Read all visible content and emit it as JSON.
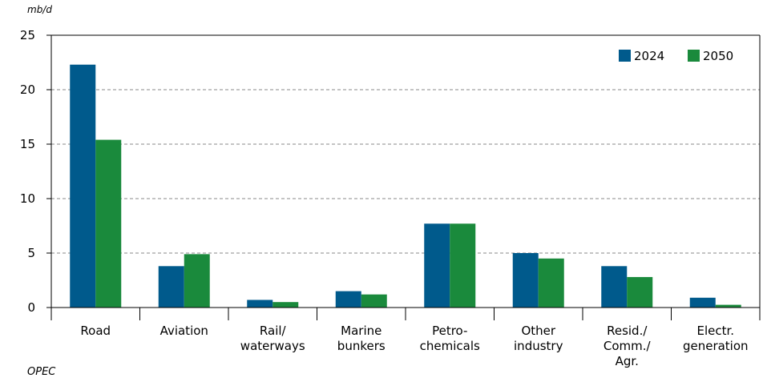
{
  "chart_data": {
    "type": "bar",
    "unit_label": "mb/d",
    "categories": [
      [
        "Road"
      ],
      [
        "Aviation"
      ],
      [
        "Rail/",
        "waterways"
      ],
      [
        "Marine",
        "bunkers"
      ],
      [
        "Petro-",
        "chemicals"
      ],
      [
        "Other",
        "industry"
      ],
      [
        "Resid./",
        "Comm./",
        "Agr."
      ],
      [
        "Electr.",
        "generation"
      ]
    ],
    "series": [
      {
        "name": "2024",
        "color": "#005a8c",
        "values": [
          22.3,
          3.8,
          0.7,
          1.5,
          7.7,
          5.0,
          3.8,
          0.9
        ]
      },
      {
        "name": "2050",
        "color": "#1a8a3c",
        "values": [
          15.4,
          4.9,
          0.5,
          1.2,
          7.7,
          4.5,
          2.8,
          0.25
        ]
      }
    ],
    "ylim": [
      0,
      25
    ],
    "yticks": [
      0,
      5,
      10,
      15,
      20,
      25
    ],
    "grid": "horizontal dashed",
    "legend_position": "top-right",
    "source": "OPEC"
  }
}
